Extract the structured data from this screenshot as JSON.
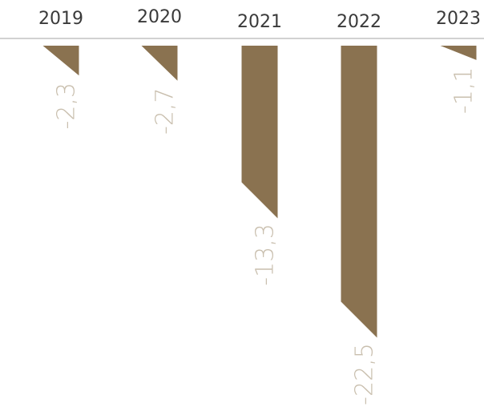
{
  "chart_data": {
    "type": "bar",
    "categories": [
      "2019",
      "2020",
      "2021",
      "2022",
      "2023"
    ],
    "values": [
      -2.3,
      -2.7,
      -13.3,
      -22.5,
      -1.1
    ],
    "value_labels": [
      "-2,3",
      "-2,7",
      "-13,3",
      "-22,5",
      "-1,1"
    ],
    "title": "",
    "xlabel": "",
    "ylabel": "",
    "ylim": [
      -22.5,
      0
    ],
    "grid": false,
    "colors": {
      "bar": "#8a7250",
      "label": "#c9bfae",
      "axis": "#d2d2d2",
      "category": "#3a3a3a"
    }
  }
}
